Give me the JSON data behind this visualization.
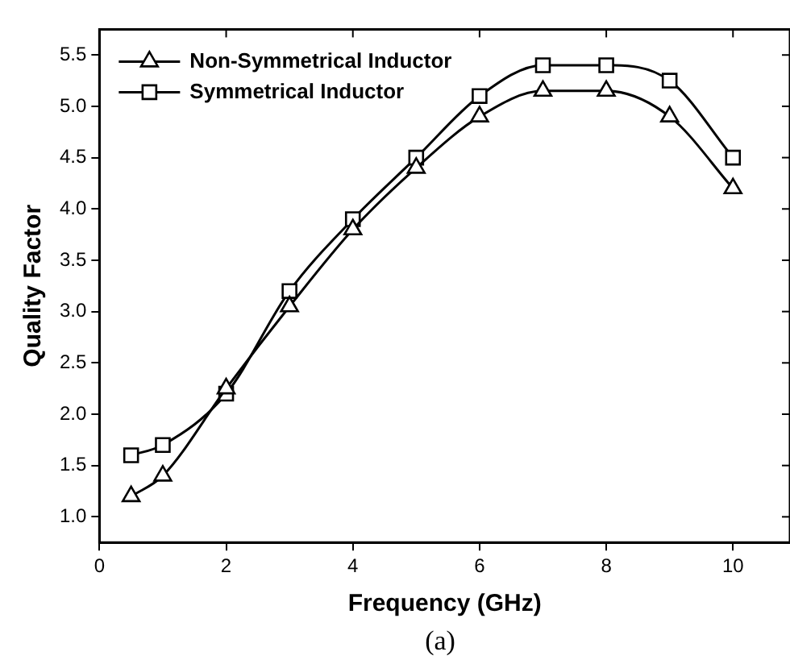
{
  "chart_data": {
    "type": "line",
    "xlabel": "Frequency (GHz)",
    "ylabel": "Quality Factor",
    "annotations": [
      "(a)"
    ],
    "x": [
      0.5,
      1,
      2,
      3,
      4,
      5,
      6,
      7,
      8,
      9,
      10
    ],
    "series": [
      {
        "name": "Non-Symmetrical Inductor",
        "color": "#000000",
        "marker": "triangle",
        "values": [
          1.2,
          1.4,
          2.25,
          3.05,
          3.8,
          4.4,
          4.9,
          5.15,
          5.15,
          4.9,
          4.2
        ]
      },
      {
        "name": "Symmetrical Inductor",
        "color": "#000000",
        "marker": "square",
        "values": [
          1.6,
          1.7,
          2.2,
          3.2,
          3.9,
          4.5,
          5.1,
          5.4,
          5.4,
          5.25,
          4.5
        ]
      }
    ],
    "xlim": [
      0,
      10.9
    ],
    "xticks": [
      0,
      2,
      4,
      6,
      8,
      10
    ],
    "ylim": [
      0.75,
      5.75
    ],
    "yticks": [
      {
        "value": 1,
        "label": "1.0"
      },
      1.5,
      {
        "value": 2,
        "label": "2.0"
      },
      2.5,
      {
        "value": 3,
        "label": "3.0"
      },
      3.5,
      {
        "value": 4,
        "label": "4.0"
      },
      4.5,
      {
        "value": 5,
        "label": "5.0"
      },
      5.5
    ],
    "grid": false,
    "legend": "top left",
    "line_style": "solid"
  }
}
